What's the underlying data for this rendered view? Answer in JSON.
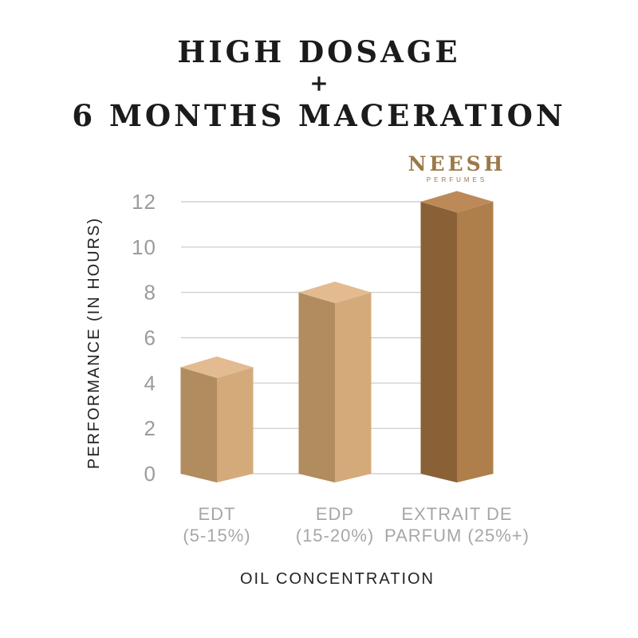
{
  "page": {
    "background_color": "#ffffff"
  },
  "title": {
    "line1": "HIGH DOSAGE",
    "line2": "+",
    "line3": "6 MONTHS MACERATION",
    "color": "#1b1b1b"
  },
  "logo": {
    "name": "NEESH",
    "subtitle": "PERFUMES",
    "color": "#9c7848"
  },
  "chart_data": {
    "type": "bar",
    "style": "3d-column",
    "title": "",
    "xlabel": "OIL CONCENTRATION",
    "ylabel": "PERFORMANCE (IN HOURS)",
    "categories": [
      [
        "EDT",
        "(5-15%)"
      ],
      [
        "EDP",
        "(15-20%)"
      ],
      [
        "EXTRAIT DE",
        "PARFUM (25%+)"
      ]
    ],
    "category_ids": [
      "edt",
      "edp",
      "extrait-de-parfum"
    ],
    "values": [
      4.7,
      8,
      12
    ],
    "yticks": [
      0,
      2,
      4,
      6,
      8,
      10,
      12
    ],
    "ylim": [
      0,
      12
    ],
    "grid": true,
    "legend": false,
    "bar_colors": [
      {
        "left": "#b18c5f",
        "right": "#d5aa7b",
        "top": "#e3bb90"
      },
      {
        "left": "#b18c5f",
        "right": "#d5aa7b",
        "top": "#e3bb90"
      },
      {
        "left": "#8a6136",
        "right": "#ae7f4a",
        "top": "#bb8a58"
      }
    ],
    "colors": {
      "grid": "#c8c8c8",
      "tick_labels": "#9b9b9b",
      "category_labels": "#a7a7a7",
      "axis_titles": "#222222"
    }
  }
}
